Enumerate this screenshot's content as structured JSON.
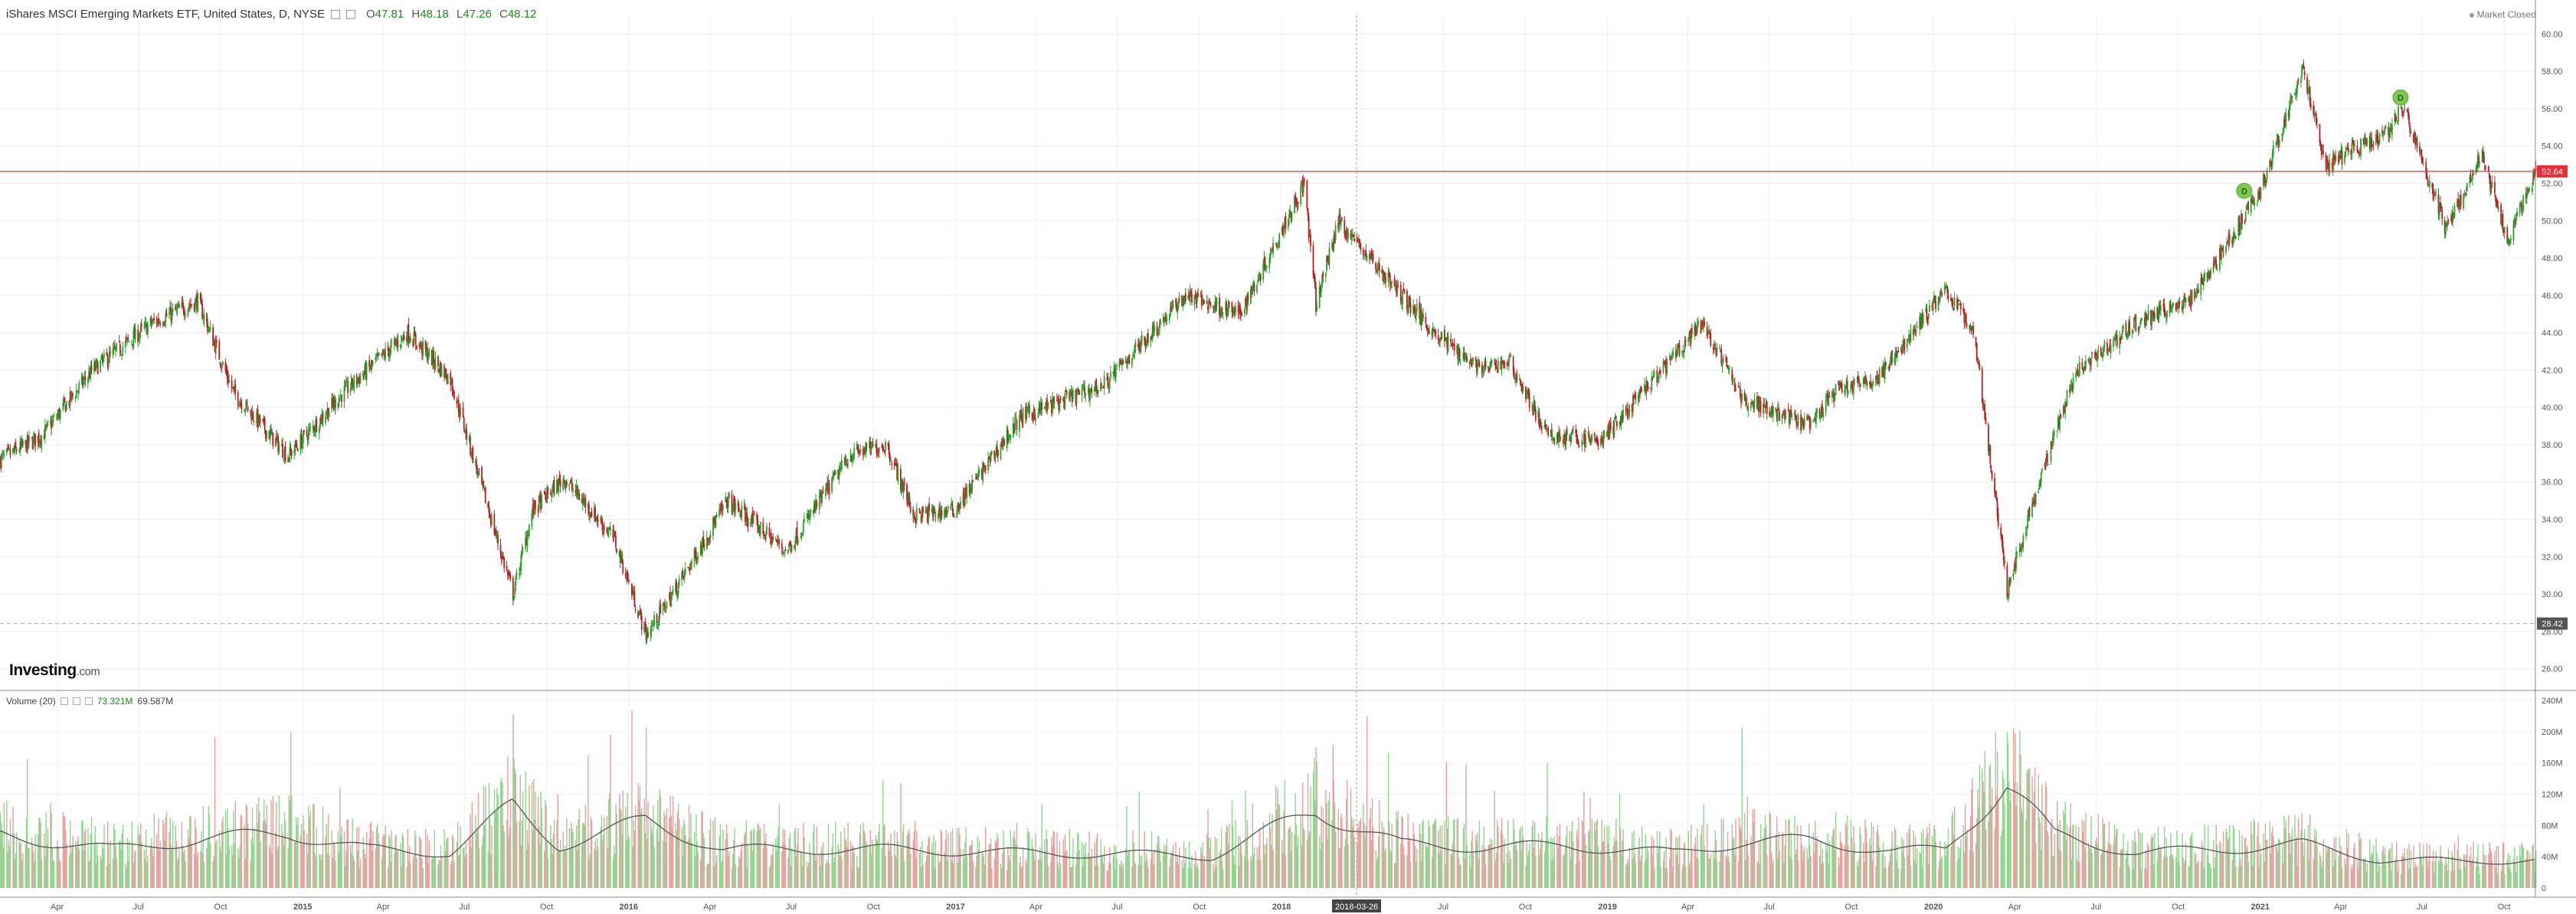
{
  "header": {
    "title": "iShares MSCI Emerging Markets ETF, United States, D, NYSE",
    "open_label": "O",
    "open": "47.81",
    "high_label": "H",
    "high": "48.18",
    "low_label": "L",
    "low": "47.26",
    "close_label": "C",
    "close": "48.12"
  },
  "market_status": "Market Closed",
  "logo": {
    "main": "Investing",
    "suffix": ".com"
  },
  "volume_header": {
    "label": "Volume (20)",
    "value1": "73.321M",
    "value2": "69.587M"
  },
  "colors": {
    "up": "#2e9e2e",
    "down": "#b22222",
    "vol_up": "#8fd68f",
    "vol_down": "#e8a0a0",
    "hline": "#e8303a",
    "price_marker_bg": "#e8303a",
    "low_marker_bg": "#555555",
    "crosshair_label_bg": "#444444",
    "dividend_marker": "#7ec850"
  },
  "chart_data": [
    {
      "type": "candlestick",
      "title": "iShares MSCI Emerging Markets ETF, United States, D, NYSE",
      "ylim": [
        25,
        61
      ],
      "y_ticks": [
        "60.00",
        "58.00",
        "56.00",
        "54.00",
        "52.00",
        "50.00",
        "48.00",
        "46.00",
        "44.00",
        "42.00",
        "40.00",
        "38.00",
        "36.00",
        "34.00",
        "32.00",
        "30.00",
        "28.00",
        "26.00"
      ],
      "x_ticks": [
        "Apr",
        "Jul",
        "Oct",
        "2015",
        "Apr",
        "Jul",
        "Oct",
        "2016",
        "Apr",
        "Jul",
        "Oct",
        "2017",
        "Apr",
        "Jul",
        "Oct",
        "2018",
        "Apr",
        "Jul",
        "Oct",
        "2019",
        "Apr",
        "Jul",
        "Oct",
        "2020",
        "Apr",
        "Jul",
        "Oct",
        "2021",
        "Apr",
        "Jul",
        "Oct"
      ],
      "x_range": [
        "2014-01-27",
        "2021-11-05"
      ],
      "price_path": [
        [
          "2014-01-27",
          37.2
        ],
        [
          "2014-03-15",
          38.5
        ],
        [
          "2014-05-10",
          42.0
        ],
        [
          "2014-07-15",
          44.5
        ],
        [
          "2014-09-05",
          45.7
        ],
        [
          "2014-10-15",
          40.8
        ],
        [
          "2014-12-15",
          37.4
        ],
        [
          "2015-02-15",
          40.8
        ],
        [
          "2015-04-28",
          44.0
        ],
        [
          "2015-06-15",
          41.5
        ],
        [
          "2015-08-24",
          30.0
        ],
        [
          "2015-09-15",
          34.5
        ],
        [
          "2015-10-20",
          36.2
        ],
        [
          "2015-12-15",
          33.0
        ],
        [
          "2016-01-20",
          27.8
        ],
        [
          "2016-02-25",
          30.5
        ],
        [
          "2016-04-20",
          35.0
        ],
        [
          "2016-06-25",
          32.3
        ],
        [
          "2016-09-05",
          37.5
        ],
        [
          "2016-10-15",
          38.0
        ],
        [
          "2016-11-15",
          34.2
        ],
        [
          "2016-12-30",
          34.5
        ],
        [
          "2017-03-15",
          39.5
        ],
        [
          "2017-06-15",
          41.2
        ],
        [
          "2017-09-15",
          46.0
        ],
        [
          "2017-11-15",
          45.0
        ],
        [
          "2018-01-26",
          52.0
        ],
        [
          "2018-02-08",
          45.5
        ],
        [
          "2018-03-05",
          50.0
        ],
        [
          "2018-05-15",
          46.0
        ],
        [
          "2018-06-25",
          43.8
        ],
        [
          "2018-08-15",
          42.0
        ],
        [
          "2018-09-12",
          42.5
        ],
        [
          "2018-10-25",
          38.5
        ],
        [
          "2018-12-24",
          38.2
        ],
        [
          "2019-04-17",
          44.5
        ],
        [
          "2019-05-31",
          40.5
        ],
        [
          "2019-08-15",
          39.0
        ],
        [
          "2019-09-15",
          41.0
        ],
        [
          "2019-10-30",
          41.5
        ],
        [
          "2019-12-31",
          45.5
        ],
        [
          "2020-01-15",
          46.3
        ],
        [
          "2020-02-15",
          44.0
        ],
        [
          "2020-03-23",
          30.2
        ],
        [
          "2020-04-15",
          34.0
        ],
        [
          "2020-06-08",
          42.0
        ],
        [
          "2020-08-15",
          44.5
        ],
        [
          "2020-10-15",
          45.8
        ],
        [
          "2020-12-31",
          51.5
        ],
        [
          "2021-02-17",
          58.2
        ],
        [
          "2021-03-15",
          53.0
        ],
        [
          "2021-05-15",
          54.5
        ],
        [
          "2021-06-10",
          56.0
        ],
        [
          "2021-07-28",
          49.5
        ],
        [
          "2021-09-05",
          53.5
        ],
        [
          "2021-10-05",
          49.0
        ],
        [
          "2021-11-05",
          52.7
        ]
      ],
      "horizontal_line": {
        "value": 52.64,
        "label": "52.64"
      },
      "low_marker": {
        "value": 28.42,
        "label": "28.42"
      },
      "crosshair": {
        "date": "2018-03-26",
        "label": "2018-03-26"
      },
      "dividend_markers": [
        {
          "date": "2020-12-14",
          "value": 51.6,
          "label": "D"
        },
        {
          "date": "2021-06-07",
          "value": 56.6,
          "label": "D"
        }
      ]
    },
    {
      "type": "bar",
      "title": "Volume (20)",
      "ylim": [
        0,
        240
      ],
      "y_ticks": [
        "240M",
        "200M",
        "160M",
        "120M",
        "80M",
        "40M",
        "0"
      ],
      "moving_average": "Volume (20)",
      "volume_path_M": [
        [
          "2014-01-27",
          75
        ],
        [
          "2014-06-01",
          55
        ],
        [
          "2014-09-15",
          70
        ],
        [
          "2014-12-15",
          78
        ],
        [
          "2015-03-15",
          55
        ],
        [
          "2015-06-15",
          50
        ],
        [
          "2015-08-24",
          115
        ],
        [
          "2015-10-15",
          60
        ],
        [
          "2016-01-20",
          95
        ],
        [
          "2016-04-15",
          55
        ],
        [
          "2016-07-15",
          55
        ],
        [
          "2016-10-15",
          55
        ],
        [
          "2017-03-15",
          50
        ],
        [
          "2017-07-15",
          48
        ],
        [
          "2017-10-15",
          45
        ],
        [
          "2018-02-08",
          110
        ],
        [
          "2018-05-15",
          62
        ],
        [
          "2018-08-15",
          58
        ],
        [
          "2018-11-15",
          60
        ],
        [
          "2019-03-15",
          50
        ],
        [
          "2019-05-31",
          65
        ],
        [
          "2019-08-15",
          68
        ],
        [
          "2019-11-15",
          52
        ],
        [
          "2020-01-15",
          55
        ],
        [
          "2020-03-23",
          150
        ],
        [
          "2020-05-15",
          75
        ],
        [
          "2020-08-15",
          50
        ],
        [
          "2020-11-15",
          55
        ],
        [
          "2021-02-17",
          62
        ],
        [
          "2021-05-15",
          40
        ],
        [
          "2021-08-15",
          38
        ],
        [
          "2021-11-05",
          40
        ]
      ],
      "spikes_M": [
        [
          "2015-08-24",
          222
        ],
        [
          "2016-01-20",
          205
        ],
        [
          "2018-02-08",
          180
        ],
        [
          "2018-10-25",
          160
        ],
        [
          "2019-05-31",
          205
        ],
        [
          "2020-03-12",
          175
        ],
        [
          "2020-03-23",
          200
        ],
        [
          "2020-03-18",
          150
        ]
      ]
    }
  ]
}
